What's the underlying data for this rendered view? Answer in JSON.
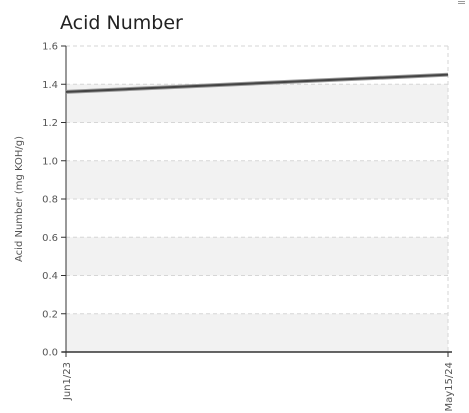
{
  "chart_title": "Acid Number",
  "menu_icon": "hamburger-menu-icon",
  "chart_data": {
    "type": "line",
    "title": "Acid Number",
    "xlabel": "",
    "ylabel": "Acid Number (mg KOH/g)",
    "ylim": [
      0,
      1.6
    ],
    "yticks": [
      0.0,
      0.2,
      0.4,
      0.6,
      0.8,
      1.0,
      1.2,
      1.4,
      1.6
    ],
    "ytick_labels": [
      "0.0",
      "0.2",
      "0.4",
      "0.6",
      "0.8",
      "1.0",
      "1.2",
      "1.4",
      "1.6"
    ],
    "x": [
      "Jun1/23",
      "May15/24"
    ],
    "xtick_labels": [
      "Jun1/23",
      "May15/24"
    ],
    "series": [
      {
        "values": [
          1.36,
          1.45
        ]
      }
    ],
    "grid": true,
    "banded_background": true,
    "colors": {
      "line": "#444444",
      "band": "#f2f2f2",
      "grid": "#d6d6d6",
      "axis": "#333333"
    }
  }
}
